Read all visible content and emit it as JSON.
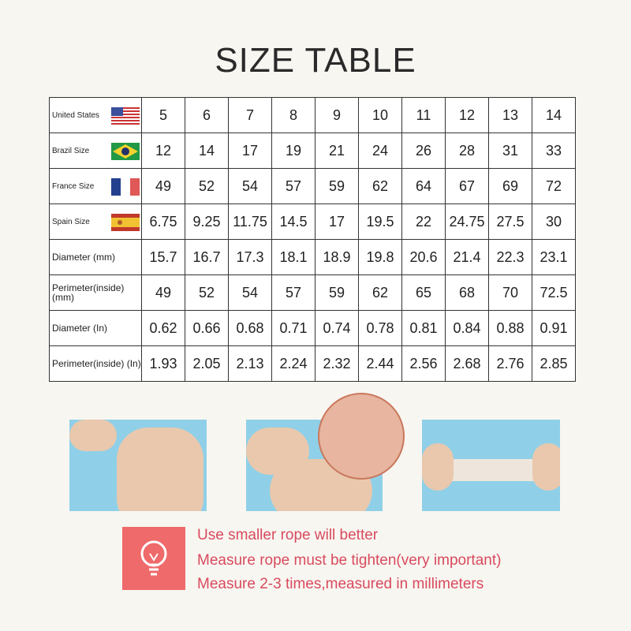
{
  "title": "SIZE TABLE",
  "table": {
    "rows": [
      {
        "label": "United States",
        "flag": "us-flag-icon",
        "values": [
          "5",
          "6",
          "7",
          "8",
          "9",
          "10",
          "11",
          "12",
          "13",
          "14"
        ]
      },
      {
        "label": "Brazil Size",
        "flag": "brazil-flag-icon",
        "values": [
          "12",
          "14",
          "17",
          "19",
          "21",
          "24",
          "26",
          "28",
          "31",
          "33"
        ]
      },
      {
        "label": "France Size",
        "flag": "france-flag-icon",
        "values": [
          "49",
          "52",
          "54",
          "57",
          "59",
          "62",
          "64",
          "67",
          "69",
          "72"
        ]
      },
      {
        "label": "Spain Size",
        "flag": "spain-flag-icon",
        "values": [
          "6.75",
          "9.25",
          "11.75",
          "14.5",
          "17",
          "19.5",
          "22",
          "24.75",
          "27.5",
          "30"
        ]
      },
      {
        "label": "Diameter (mm)",
        "values": [
          "15.7",
          "16.7",
          "17.3",
          "18.1",
          "18.9",
          "19.8",
          "20.6",
          "21.4",
          "22.3",
          "23.1"
        ]
      },
      {
        "label": "Perimeter(inside) (mm)",
        "values": [
          "49",
          "52",
          "54",
          "57",
          "59",
          "62",
          "65",
          "68",
          "70",
          "72.5"
        ]
      },
      {
        "label": "Diameter (In)",
        "values": [
          "0.62",
          "0.66",
          "0.68",
          "0.71",
          "0.74",
          "0.78",
          "0.81",
          "0.84",
          "0.88",
          "0.91"
        ]
      },
      {
        "label": "Perimeter(inside) (In)",
        "values": [
          "1.93",
          "2.05",
          "2.13",
          "2.24",
          "2.32",
          "2.44",
          "2.56",
          "2.68",
          "2.76",
          "2.85"
        ]
      }
    ]
  },
  "tips": {
    "icon": "lightbulb-icon",
    "lines": [
      "Use smaller rope will better",
      "Measure rope must be tighten(very important)",
      "Measure 2-3 times,measured in millimeters"
    ],
    "accent": "#d84a5e"
  }
}
